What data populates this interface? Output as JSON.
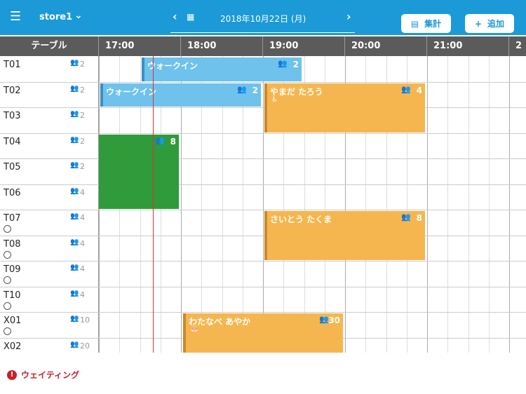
{
  "header": {
    "store": "store1",
    "date": "2018年10月22日 (月)",
    "summary_button": "集計",
    "add_button": "追加"
  },
  "timeline": {
    "table_header": "テーブル",
    "hours": [
      "17:00",
      "18:00",
      "19:00",
      "20:00",
      "21:00",
      "2"
    ]
  },
  "tables": [
    {
      "name": "T01",
      "capacity": 2
    },
    {
      "name": "T02",
      "capacity": 2
    },
    {
      "name": "T03",
      "capacity": 2
    },
    {
      "name": "T04",
      "capacity": 2
    },
    {
      "name": "T05",
      "capacity": 2
    },
    {
      "name": "T06",
      "capacity": 4
    },
    {
      "name": "T07",
      "capacity": 4
    },
    {
      "name": "T08",
      "capacity": 4
    },
    {
      "name": "T09",
      "capacity": 4
    },
    {
      "name": "T10",
      "capacity": 4
    },
    {
      "name": "X01",
      "capacity": 10
    },
    {
      "name": "X02",
      "capacity": 20
    }
  ],
  "reservations": [
    {
      "name": "ウォークイン",
      "party": 2
    },
    {
      "name": "ウォークイン",
      "party": 2
    },
    {
      "name": "やまだ たろう",
      "party": 4
    },
    {
      "party": 8
    },
    {
      "name": "さいとう たくま",
      "party": 8
    },
    {
      "name": "わたなべ あやか",
      "party": 30
    }
  ],
  "footer": {
    "waiting": "ウェイティング"
  }
}
